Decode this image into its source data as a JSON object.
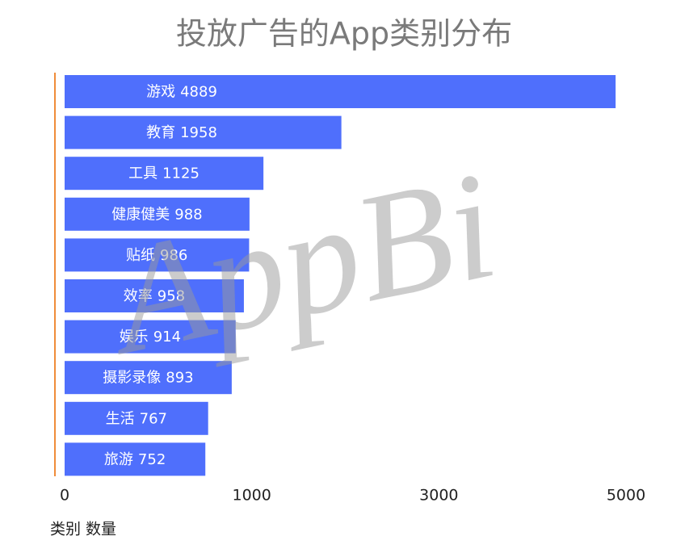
{
  "chart_data": {
    "type": "bar",
    "orientation": "horizontal",
    "title": "投放广告的App类别分布",
    "categories": [
      "游戏",
      "教育",
      "工具",
      "健康健美",
      "贴纸",
      "效率",
      "娱乐",
      "摄影录像",
      "生活",
      "旅游"
    ],
    "values": [
      4889,
      1958,
      1125,
      988,
      986,
      958,
      914,
      893,
      767,
      752
    ],
    "color": "#4f6ffc",
    "axis_color": "#f08c3a",
    "xlim": [
      0,
      5000
    ],
    "xticks": [
      0,
      1000,
      3000,
      5000
    ],
    "axis_label": "类别 数量",
    "watermark": "AppBi"
  }
}
